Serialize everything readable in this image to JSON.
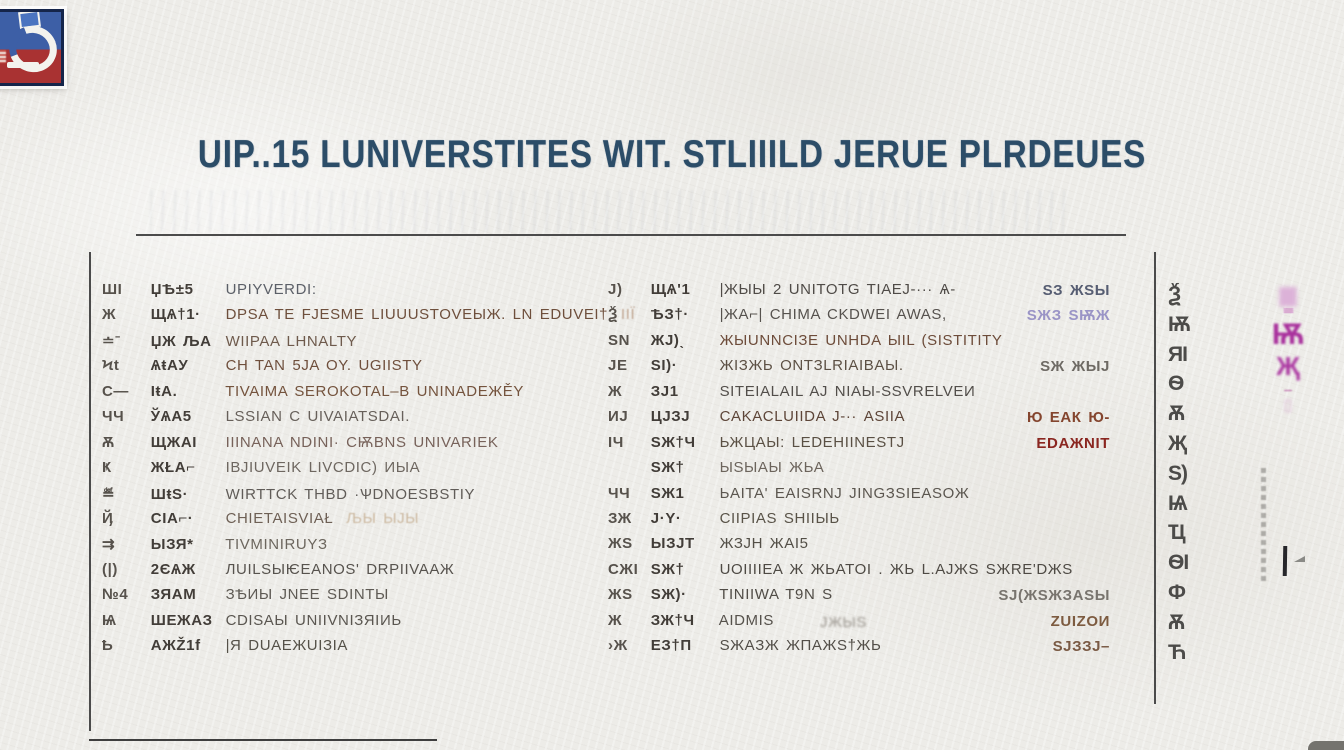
{
  "title": {
    "text": "UIP..15 LUNIVERSTITES  WIT. STLIIILD JERUE PLRDEUES",
    "color": "#2c4d68"
  },
  "logo": {
    "label": "red-blue-emblem",
    "blue": "#3d5fa6",
    "red": "#a93232",
    "border": "#15254a"
  },
  "table": {
    "left_rows": [
      {
        "marker": "ШI",
        "code": "ЏѢ±5",
        "name": "UPIYVERDI:",
        "name_color": "#5c6068"
      },
      {
        "marker": "Ж",
        "code": "ЩѦ†1·",
        "name": "DPSA TE FJESME LIUUUSTOVEЫЖ. LN EDUVEI†",
        "name_color": "#6e4f3c",
        "tail": "ІІЇ",
        "tail_color": "#c2a894"
      },
      {
        "marker": "≐ˉ",
        "code": "ЏЖ ЉА",
        "name": "WIIPAA LHNALTY",
        "name_color": "#6e5a4c"
      },
      {
        "marker": "Ϟt",
        "code": "ѦŧAУ",
        "name": "CH TAN 5JA OY. UGIISTY",
        "name_color": "#6f4f3c"
      },
      {
        "marker": "C—",
        "code": "IŧА.",
        "name": "TIVAIMA SEROKOTAL–B UNINADEЖĚY",
        "name_color": "#74533d"
      },
      {
        "marker": "ЧЧ",
        "code": "ЎѦА5",
        "name": "LSSIAN C UIVAIATSDAI.",
        "name_color": "#67605a"
      },
      {
        "marker": "Ѫ",
        "code": "ЩЖAI",
        "name": "IIINANA NDINI· CѬBNЅ UNIVARIEK",
        "name_color": "#77625a"
      },
      {
        "marker": "Ҝ",
        "code": "ЖŁA⌐",
        "name": "IBJIUVEIK LIVCDIC) ИЫA",
        "name_color": "#6e6760"
      },
      {
        "marker": "≝",
        "code": "ШŧЅ·",
        "name": "WIRTTCK THBD ·ѰDNOESBSTIY",
        "name_color": "#605c58"
      },
      {
        "marker": "Ҋ",
        "code": "CIA⌐·",
        "name": "CHIETAIЅVIAŁ",
        "name_color": "#6e6055",
        "tail": "ЉЫ ЫЈЫ",
        "tail_color": "#cdbaa2"
      },
      {
        "marker": "⇉",
        "code": "ЫЗЯ*",
        "name": "TIVMINIRUYЗ",
        "name_color": "#6c665e"
      },
      {
        "marker": "(|)",
        "code": "2ЄѦЖ",
        "name": "ЛUILЅЫѤEANOS' DRPIIVAAЖ",
        "name_color": "#57534e"
      },
      {
        "marker": "№4",
        "code": "ЗЯAM",
        "name": "ЗѢИЫ JNEE SDINTЫ",
        "name_color": "#5e5a54"
      },
      {
        "marker": "Ѩ",
        "code": "ШЕЖАЗ",
        "name": "CDIЅAЫ UNIIVNIЗЯIИЬ",
        "name_color": "#5a5650"
      },
      {
        "marker": "Ҍ",
        "code": "АЖŽ1f",
        "name": "|Я DUAEЖUIЗIA",
        "name_color": "#555148"
      }
    ],
    "right_rows": [
      {
        "marker": "Ј)",
        "code": "ЩѦ'1",
        "name": "|ЖЫЫ 2 UNITOTG TIAEЈ-··· Ѧ-",
        "name_color": "#4f4b47",
        "ann": "ЅЗ ЖЅЫ",
        "ann_color": "#565d72"
      },
      {
        "marker": "Ѯ",
        "code": "ѢЗ†·",
        "name": "|ЖА⌐| CHIMA CKDWEI AWAЅ,",
        "name_color": "#56524e",
        "ann": "ЅЖЗ ЅѬЖ",
        "ann_color": "#9a94c6"
      },
      {
        "marker": "ЅN",
        "code": "ЖЈ)ˎ",
        "name": "ЖЫUNNCIЗE UNHDA ЫIL (ЅISTITITY",
        "name_color": "#6d4c3a"
      },
      {
        "marker": "ЈЕ",
        "code": "ЅI)·",
        "name": "ЖIЗЖЬ ONTЗLRIAIBAЫ.",
        "name_color": "#5c5044",
        "ann": "ЅЖ ЖЫЈ",
        "ann_color": "#6e6a64"
      },
      {
        "marker": "Ж",
        "code": "ЗЈ1",
        "name": "ЅITEIALAIL AЈ NIAЫ-SSVRELVEИ",
        "name_color": "#524e4a"
      },
      {
        "marker": "ИЈ",
        "code": "ЦЈЗЈ",
        "name": "CAKACLUIIDA Ј-·· AЅIIA",
        "name_color": "#5d4538",
        "ann": "Ю ЕAК Ю-",
        "ann_color": "#84452e"
      },
      {
        "marker": "IЧ",
        "code": "ЅЖ†Ч",
        "name": "ЬЖЦАЫ: LEDEHIINESTЈ",
        "name_color": "#5a5044",
        "ann": "EDAЖNIT",
        "ann_color": "#8a2620"
      },
      {
        "marker": "",
        "code": "ЅЖ†",
        "name": "ЫЅЫAЫ ЖЬА",
        "name_color": "#6c645c"
      },
      {
        "marker": "ЧЧ",
        "code": "ЅЖ1",
        "name": "ЬAITA' EAISRNЈ JINGЗSIEAЅOЖ",
        "name_color": "#5b564f"
      },
      {
        "marker": "ЗЖ",
        "code": "Ј·Y·",
        "name": "CIIPIAS ЅHIIЫЬ",
        "name_color": "#595348"
      },
      {
        "marker": "ЖЅ",
        "code": "ЫЗЈT",
        "name": "ЖЗЈН ЖАI5",
        "name_color": "#534f47"
      },
      {
        "marker": "CЖI",
        "code": "ЅЖ†",
        "name": "UOIIIIEA Ж ЖЬATOI . ЖЬ L.AЈЖЅ ЅЖRE'DЖЅ",
        "name_color": "#4e4a44"
      },
      {
        "marker": "ЖЅ",
        "code": "ЅЖ)·",
        "name": "TINIIWA T9N Ѕ",
        "name_color": "#504c46",
        "ann": "ЅЈ(ЖЅЖЗАЅЫ",
        "ann_color": "#78746e"
      },
      {
        "marker": "Ж",
        "code": "ЗЖ†Ч",
        "name": "AIDMIЅ",
        "name_color": "#56524c",
        "mid": "ЈЖЫЅ",
        "mid_color": "#9a958e",
        "ann": "ZUIZOИ",
        "ann_color": "#7d5b40"
      },
      {
        "marker": "›Ж",
        "code": "ЕЗ†П",
        "name": "ЅЖAЗЖ ЖПAЖЅ†ЖЬ",
        "name_color": "#524e48",
        "ann": "ЅЈЗЗЈ–",
        "ann_color": "#7a5a44"
      }
    ]
  },
  "margin": {
    "glyphs": [
      "Ѯ",
      "Ѭ",
      "ЯI",
      "Ѳ",
      "Ѫ",
      "Җ",
      "Ѕ)",
      "Ѩ",
      "Ҵ",
      "ѲI",
      "Ф",
      "Ѫ",
      "Ћ"
    ],
    "seal": {
      "color": "#a8309c",
      "segments": [
        "▆",
        "≡≡",
        "Ѭ",
        "Җ",
        "–",
        "▯"
      ]
    }
  }
}
